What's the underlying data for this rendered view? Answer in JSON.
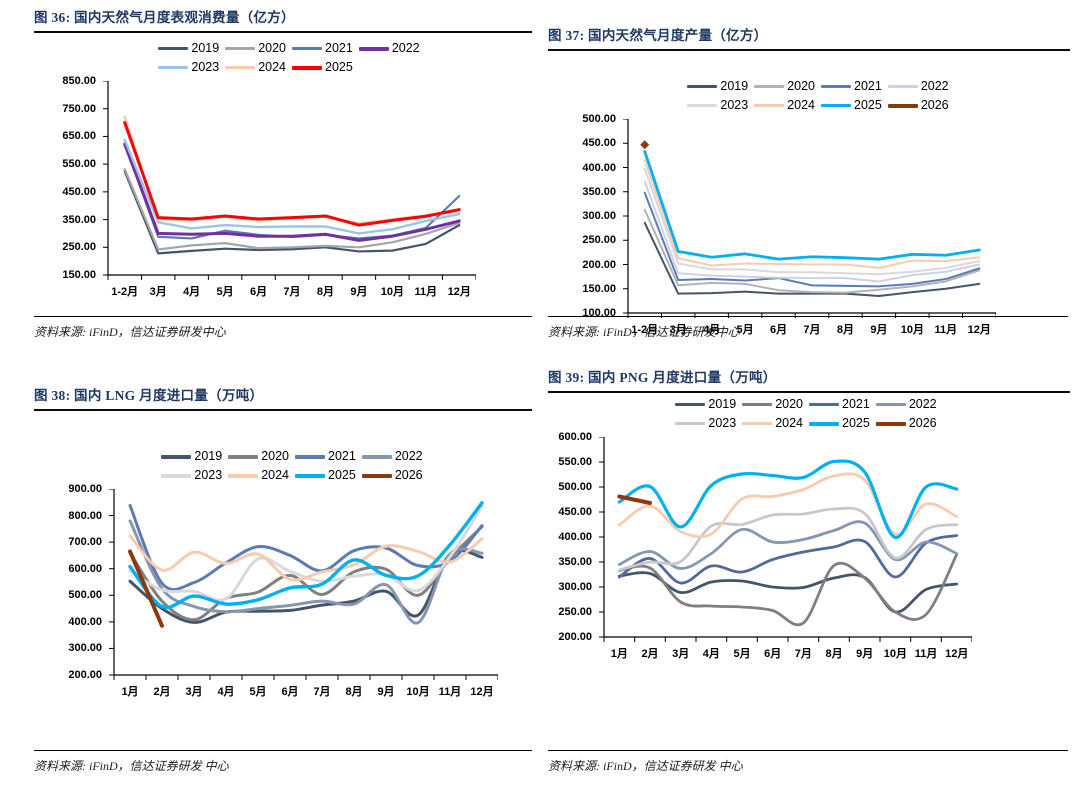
{
  "page": {
    "background": "#ffffff",
    "accent_title_color": "#1F3864"
  },
  "chart_data": [
    {
      "type": "line",
      "title": "图 36: 国内天然气月度表观消费量（亿方）",
      "source": "资料来源: iFinD，信达证券研发中心",
      "xlabel": "",
      "ylabel": "",
      "grid": false,
      "smooth": false,
      "legend_position": "top",
      "ylim": [
        150,
        850
      ],
      "yticks": [
        "850.00",
        "750.00",
        "650.00",
        "550.00",
        "450.00",
        "350.00",
        "250.00",
        "150.00"
      ],
      "categories": [
        "1-2月",
        "3月",
        "4月",
        "5月",
        "6月",
        "7月",
        "8月",
        "9月",
        "10月",
        "11月",
        "12月"
      ],
      "series": [
        {
          "name": "2019",
          "color": "#44546A",
          "w": 2.2,
          "values": [
            524,
            228,
            237,
            245,
            240,
            243,
            250,
            235,
            238,
            262,
            330
          ]
        },
        {
          "name": "2020",
          "color": "#A6A6A6",
          "w": 2.2,
          "values": [
            532,
            242,
            257,
            265,
            247,
            250,
            255,
            250,
            268,
            298,
            338
          ]
        },
        {
          "name": "2021",
          "color": "#5B7BB4",
          "w": 2.2,
          "values": [
            625,
            288,
            282,
            310,
            295,
            287,
            295,
            282,
            292,
            320,
            435
          ]
        },
        {
          "name": "2022",
          "color": "#7030A0",
          "w": 3,
          "values": [
            622,
            300,
            297,
            300,
            290,
            290,
            297,
            275,
            290,
            315,
            345
          ]
        },
        {
          "name": "2023",
          "color": "#9DC3E6",
          "w": 2.4,
          "values": [
            637,
            340,
            318,
            330,
            323,
            325,
            325,
            300,
            315,
            345,
            370
          ]
        },
        {
          "name": "2024",
          "color": "#F8CBAD",
          "w": 2.4,
          "values": [
            722,
            352,
            347,
            360,
            347,
            355,
            360,
            337,
            350,
            365,
            380
          ]
        },
        {
          "name": "2025",
          "color": "#FF0000",
          "w": 3,
          "values": [
            700,
            357,
            352,
            363,
            352,
            357,
            363,
            330,
            347,
            362,
            386
          ]
        }
      ]
    },
    {
      "type": "line",
      "title": "图 37: 国内天然气月度产量（亿方）",
      "source": "资料来源: iFinD，信达证券研发中心",
      "xlabel": "",
      "ylabel": "",
      "grid": false,
      "smooth": false,
      "legend_position": "top",
      "ylim": [
        100,
        500
      ],
      "yticks": [
        "500.00",
        "450.00",
        "400.00",
        "350.00",
        "300.00",
        "250.00",
        "200.00",
        "150.00",
        "100.00"
      ],
      "categories": [
        "1-2月",
        "3月",
        "4月",
        "5月",
        "6月",
        "7月",
        "8月",
        "9月",
        "10月",
        "11月",
        "12月"
      ],
      "series": [
        {
          "name": "2019",
          "color": "#44546A",
          "w": 2,
          "values": [
            286,
            140,
            141,
            144,
            140,
            140,
            140,
            135,
            143,
            150,
            160
          ]
        },
        {
          "name": "2020",
          "color": "#B3B3B3",
          "w": 2,
          "values": [
            313,
            157,
            162,
            160,
            147,
            143,
            142,
            148,
            155,
            165,
            188
          ]
        },
        {
          "name": "2021",
          "color": "#5B7BB4",
          "w": 2,
          "values": [
            348,
            168,
            170,
            167,
            172,
            157,
            156,
            155,
            160,
            170,
            192
          ]
        },
        {
          "name": "2022",
          "color": "#CBD4E6",
          "w": 2,
          "values": [
            371,
            182,
            177,
            175,
            173,
            172,
            172,
            165,
            178,
            185,
            200
          ]
        },
        {
          "name": "2023",
          "color": "#D9D9D9",
          "w": 2,
          "values": [
            398,
            202,
            190,
            190,
            184,
            184,
            182,
            180,
            185,
            193,
            207
          ]
        },
        {
          "name": "2024",
          "color": "#F8CBAD",
          "w": 2,
          "values": [
            415,
            213,
            198,
            202,
            201,
            200,
            200,
            193,
            208,
            207,
            215
          ]
        },
        {
          "name": "2025",
          "color": "#00B0F0",
          "w": 2.8,
          "values": [
            433,
            227,
            215,
            222,
            211,
            216,
            214,
            211,
            221,
            219,
            230
          ]
        },
        {
          "name": "2026",
          "color": "#8C3A0B",
          "w": 3,
          "marker": "diamond",
          "values": [
            447,
            null,
            null,
            null,
            null,
            null,
            null,
            null,
            null,
            null,
            null
          ]
        }
      ]
    },
    {
      "type": "line",
      "title": "图 38: 国内 LNG 月度进口量（万吨）",
      "source": "资料来源: iFinD，信达证券研发 中心",
      "xlabel": "",
      "ylabel": "",
      "grid": false,
      "smooth": true,
      "legend_position": "top",
      "ylim": [
        200,
        900
      ],
      "yticks": [
        "900.00",
        "800.00",
        "700.00",
        "600.00",
        "500.00",
        "400.00",
        "300.00",
        "200.00"
      ],
      "categories": [
        "1月",
        "2月",
        "3月",
        "4月",
        "5月",
        "6月",
        "7月",
        "8月",
        "9月",
        "10月",
        "11月",
        "12月"
      ],
      "series": [
        {
          "name": "2019",
          "color": "#44546A",
          "w": 3,
          "values": [
            553,
            450,
            398,
            437,
            440,
            443,
            463,
            478,
            515,
            425,
            655,
            643
          ]
        },
        {
          "name": "2020",
          "color": "#808080",
          "w": 3,
          "values": [
            660,
            478,
            408,
            488,
            512,
            575,
            503,
            588,
            598,
            500,
            640,
            758
          ]
        },
        {
          "name": "2021",
          "color": "#5B7BB4",
          "w": 3,
          "values": [
            838,
            545,
            548,
            622,
            683,
            650,
            592,
            668,
            678,
            612,
            628,
            762
          ]
        },
        {
          "name": "2022",
          "color": "#8496B0",
          "w": 3,
          "values": [
            780,
            525,
            458,
            438,
            450,
            462,
            478,
            467,
            540,
            397,
            655,
            658
          ]
        },
        {
          "name": "2023",
          "color": "#D9D9D9",
          "w": 3,
          "values": [
            592,
            520,
            515,
            487,
            637,
            590,
            553,
            572,
            577,
            518,
            645,
            835
          ]
        },
        {
          "name": "2024",
          "color": "#F8CBAD",
          "w": 3,
          "values": [
            723,
            595,
            662,
            620,
            655,
            560,
            588,
            615,
            685,
            665,
            625,
            713
          ]
        },
        {
          "name": "2025",
          "color": "#00B0F0",
          "w": 3.4,
          "values": [
            608,
            458,
            497,
            467,
            483,
            528,
            542,
            633,
            575,
            573,
            690,
            848
          ]
        },
        {
          "name": "2026",
          "color": "#8C3A0B",
          "w": 4,
          "values": [
            665,
            385,
            null,
            null,
            null,
            null,
            null,
            null,
            null,
            null,
            null,
            null
          ]
        }
      ]
    },
    {
      "type": "line",
      "title": "图 39: 国内 PNG 月度进口量（万吨）",
      "source": "资料来源: iFinD，信达证券研发 中心",
      "xlabel": "",
      "ylabel": "",
      "grid": false,
      "smooth": true,
      "legend_position": "top",
      "ylim": [
        200,
        600
      ],
      "yticks": [
        "600.00",
        "550.00",
        "500.00",
        "450.00",
        "400.00",
        "350.00",
        "300.00",
        "250.00",
        "200.00"
      ],
      "categories": [
        "1月",
        "2月",
        "3月",
        "4月",
        "5月",
        "6月",
        "7月",
        "8月",
        "9月",
        "10月",
        "11月",
        "12月"
      ],
      "series": [
        {
          "name": "2019",
          "color": "#44546A",
          "w": 2.8,
          "values": [
            322,
            327,
            289,
            310,
            312,
            300,
            299,
            318,
            319,
            250,
            295,
            306
          ]
        },
        {
          "name": "2020",
          "color": "#7F7F7F",
          "w": 2.8,
          "values": [
            333,
            338,
            270,
            262,
            260,
            253,
            228,
            343,
            318,
            250,
            245,
            365
          ]
        },
        {
          "name": "2021",
          "color": "#50699F",
          "w": 2.8,
          "values": [
            320,
            357,
            308,
            342,
            330,
            355,
            370,
            380,
            391,
            320,
            388,
            403
          ]
        },
        {
          "name": "2022",
          "color": "#8496B0",
          "w": 2.8,
          "values": [
            345,
            371,
            337,
            367,
            415,
            390,
            395,
            413,
            428,
            355,
            390,
            367
          ]
        },
        {
          "name": "2023",
          "color": "#C8C8C8",
          "w": 2.8,
          "values": [
            334,
            350,
            351,
            422,
            425,
            444,
            446,
            456,
            447,
            358,
            415,
            425
          ]
        },
        {
          "name": "2024",
          "color": "#F8CBAD",
          "w": 2.8,
          "values": [
            424,
            462,
            411,
            406,
            476,
            481,
            495,
            522,
            514,
            405,
            466,
            441
          ]
        },
        {
          "name": "2025",
          "color": "#00B0F0",
          "w": 3.2,
          "values": [
            470,
            501,
            420,
            503,
            526,
            523,
            519,
            551,
            530,
            399,
            500,
            496
          ]
        },
        {
          "name": "2026",
          "color": "#8C3A0B",
          "w": 4,
          "values": [
            481,
            468,
            null,
            null,
            null,
            null,
            null,
            null,
            null,
            null,
            null,
            null
          ]
        }
      ]
    }
  ]
}
